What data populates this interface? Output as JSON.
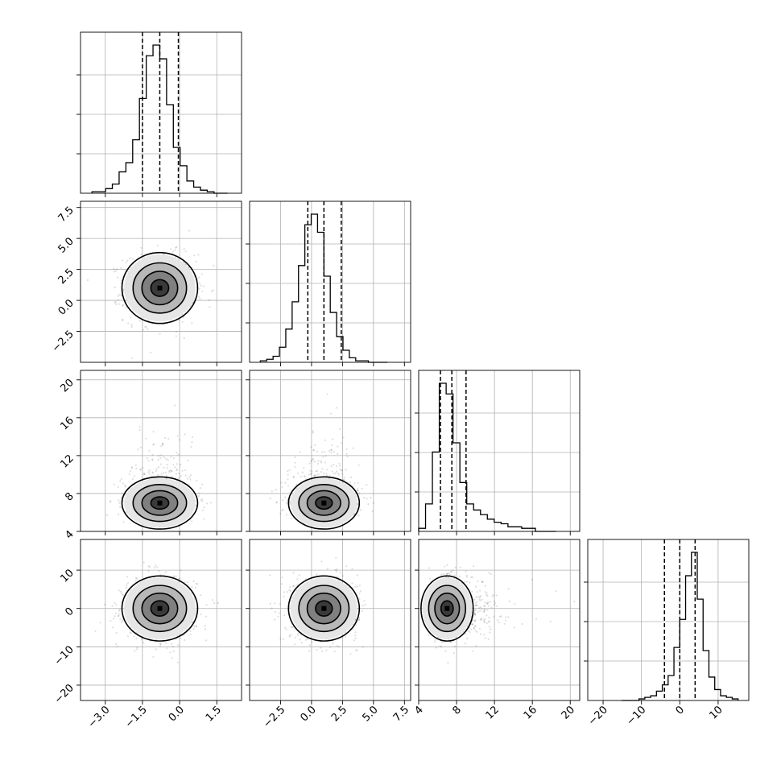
{
  "chart_data": {
    "type": "corner",
    "n_params": 4,
    "grid": true,
    "params": [
      {
        "range": [
          -4.0,
          2.5
        ],
        "ticks": [
          -3.0,
          -1.5,
          0.0,
          1.5
        ],
        "tick_labels": [
          "−3.0",
          "−1.5",
          "0.0",
          "1.5"
        ],
        "quantiles": [
          -1.5,
          -0.8,
          -0.05
        ],
        "center": -0.8,
        "spread": 0.72,
        "hist_counts": [
          1,
          1,
          3,
          6,
          14,
          20,
          35,
          62,
          90,
          97,
          88,
          58,
          30,
          18,
          8,
          4,
          2,
          1,
          0,
          0
        ]
      },
      {
        "range": [
          -5.0,
          8.0
        ],
        "ticks": [
          -2.5,
          0.0,
          2.5,
          5.0,
          7.5
        ],
        "tick_labels": [
          "−2.5",
          "0.0",
          "2.5",
          "5.0",
          "7.5"
        ],
        "quantiles": [
          -0.3,
          1.0,
          2.4
        ],
        "center": 1.0,
        "spread": 1.35,
        "hist_counts": [
          1,
          2,
          4,
          10,
          22,
          40,
          64,
          91,
          98,
          86,
          57,
          33,
          17,
          8,
          3,
          1,
          1,
          0,
          0,
          0
        ]
      },
      {
        "range": [
          4.0,
          21.0
        ],
        "ticks": [
          4,
          8,
          12,
          16,
          20
        ],
        "tick_labels": [
          "4",
          "8",
          "12",
          "16",
          "20"
        ],
        "quantiles": [
          6.3,
          7.5,
          9.0
        ],
        "center": 7.0,
        "spread": 1.3,
        "hist_counts": [
          2,
          18,
          52,
          97,
          90,
          58,
          32,
          18,
          14,
          11,
          8,
          6,
          5,
          3,
          3,
          2,
          2,
          0,
          0,
          0
        ]
      },
      {
        "range": [
          -24.0,
          18.0
        ],
        "ticks": [
          -20,
          -10,
          0,
          10
        ],
        "tick_labels": [
          "−20",
          "−10",
          "0",
          "10"
        ],
        "quantiles": [
          -4.0,
          0.0,
          4.0
        ],
        "center": 0.0,
        "spread": 4.0,
        "hist_counts": [
          0,
          0,
          0,
          1,
          2,
          3,
          6,
          10,
          16,
          34,
          52,
          80,
          95,
          65,
          32,
          15,
          7,
          3,
          2,
          1
        ]
      }
    ],
    "row_tick_labels": {
      "1": [
        "7.5",
        "5.0",
        "2.5",
        "0.0",
        "−2.5"
      ],
      "2": [
        "20",
        "16",
        "12",
        "8",
        "4"
      ],
      "3": [
        "10",
        "0",
        "−10",
        "−20"
      ]
    },
    "scatter_points_per_panel": 900,
    "contour_levels_sigma": [
      0.5,
      1.0,
      1.5,
      2.0
    ]
  },
  "colors": {
    "hist": "#000000",
    "scatter": "#000000",
    "contour": "#000000",
    "density_fill": [
      "#e6e6e6",
      "#b8b8b8",
      "#808080",
      "#3a3a3a"
    ]
  }
}
